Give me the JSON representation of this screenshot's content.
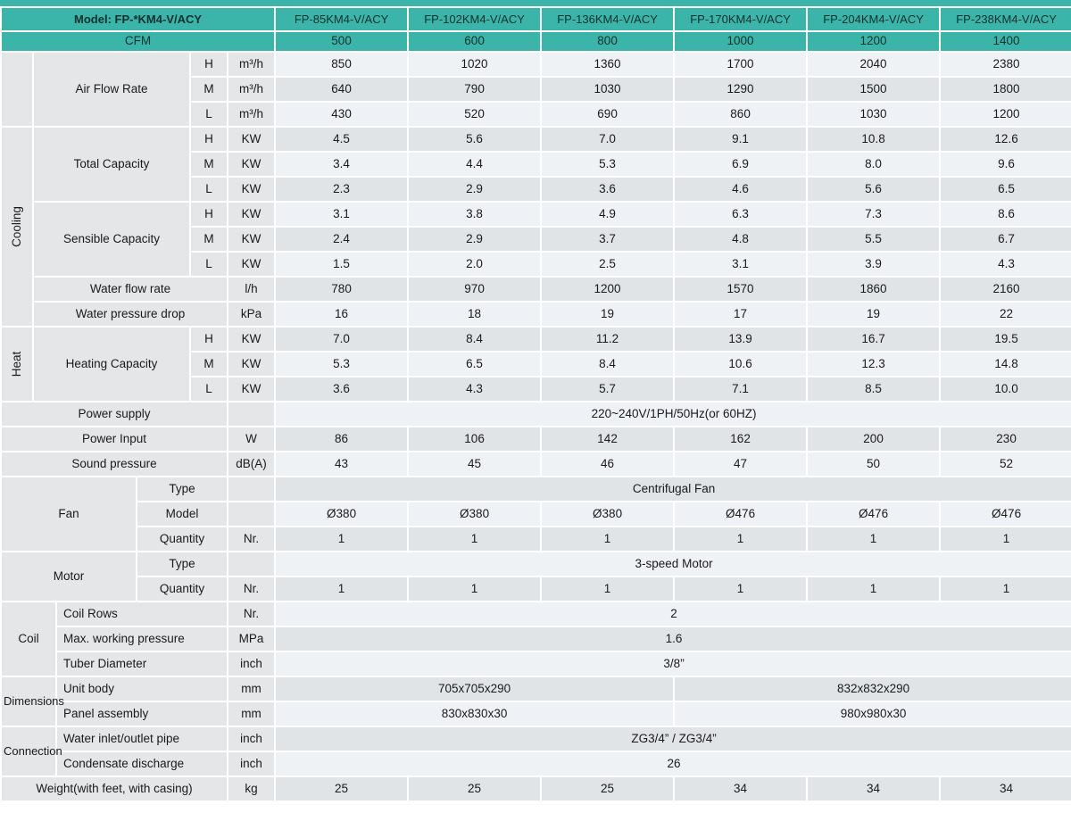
{
  "colors": {
    "teal": "#3bb5aa",
    "header_text": "#12302d",
    "label_bg": "#e4e6e8",
    "row_light": "#eef2f4",
    "row_gray": "#e1e4e6",
    "body_text": "#1a1a1a",
    "gap_white": "#ffffff"
  },
  "header": {
    "model_label": "Model: FP-*KM4-V/ACY",
    "cfm_label": "CFM",
    "models": [
      "FP-85KM4-V/ACY",
      "FP-102KM4-V/ACY",
      "FP-136KM4-V/ACY",
      "FP-170KM4-V/ACY",
      "FP-204KM4-V/ACY",
      "FP-238KM4-V/ACY"
    ],
    "cfm_values": [
      "500",
      "600",
      "800",
      "1000",
      "1200",
      "1400"
    ]
  },
  "rows": [
    [
      {
        "y": "gap",
        "rs": 3
      },
      {
        "y": "lab",
        "t": "Air Flow Rate",
        "cs": 3,
        "rs": 3
      },
      {
        "y": "hml",
        "t": "H"
      },
      {
        "y": "unit",
        "t": "m³/h"
      },
      {
        "y": "vals",
        "vals": [
          "850",
          "1020",
          "1360",
          "1700",
          "2040",
          "2380"
        ]
      }
    ],
    [
      {
        "y": "hml",
        "t": "M"
      },
      {
        "y": "unit",
        "t": "m³/h"
      },
      {
        "y": "vals",
        "vals": [
          "640",
          "790",
          "1030",
          "1290",
          "1500",
          "1800"
        ]
      }
    ],
    [
      {
        "y": "hml",
        "t": "L"
      },
      {
        "y": "unit",
        "t": "m³/h"
      },
      {
        "y": "vals",
        "vals": [
          "430",
          "520",
          "690",
          "860",
          "1030",
          "1200"
        ]
      }
    ],
    [
      {
        "y": "secv",
        "t": "Cooling",
        "rs": 8
      },
      {
        "y": "lab",
        "t": "Total Capacity",
        "cs": 3,
        "rs": 3
      },
      {
        "y": "hml",
        "t": "H"
      },
      {
        "y": "unit",
        "t": "KW"
      },
      {
        "y": "vals",
        "vals": [
          "4.5",
          "5.6",
          "7.0",
          "9.1",
          "10.8",
          "12.6"
        ]
      }
    ],
    [
      {
        "y": "hml",
        "t": "M"
      },
      {
        "y": "unit",
        "t": "KW"
      },
      {
        "y": "vals",
        "vals": [
          "3.4",
          "4.4",
          "5.3",
          "6.9",
          "8.0",
          "9.6"
        ]
      }
    ],
    [
      {
        "y": "hml",
        "t": "L"
      },
      {
        "y": "unit",
        "t": "KW"
      },
      {
        "y": "vals",
        "vals": [
          "2.3",
          "2.9",
          "3.6",
          "4.6",
          "5.6",
          "6.5"
        ]
      }
    ],
    [
      {
        "y": "lab",
        "t": "Sensible Capacity",
        "cs": 3,
        "rs": 3
      },
      {
        "y": "hml",
        "t": "H"
      },
      {
        "y": "unit",
        "t": "KW"
      },
      {
        "y": "vals",
        "vals": [
          "3.1",
          "3.8",
          "4.9",
          "6.3",
          "7.3",
          "8.6"
        ]
      }
    ],
    [
      {
        "y": "hml",
        "t": "M"
      },
      {
        "y": "unit",
        "t": "KW"
      },
      {
        "y": "vals",
        "vals": [
          "2.4",
          "2.9",
          "3.7",
          "4.8",
          "5.5",
          "6.7"
        ]
      }
    ],
    [
      {
        "y": "hml",
        "t": "L"
      },
      {
        "y": "unit",
        "t": "KW"
      },
      {
        "y": "vals",
        "vals": [
          "1.5",
          "2.0",
          "2.5",
          "3.1",
          "3.9",
          "4.3"
        ]
      }
    ],
    [
      {
        "y": "lab",
        "t": "Water flow rate",
        "cs": 4
      },
      {
        "y": "unit",
        "t": "l/h"
      },
      {
        "y": "vals",
        "vals": [
          "780",
          "970",
          "1200",
          "1570",
          "1860",
          "2160"
        ]
      }
    ],
    [
      {
        "y": "lab",
        "t": "Water pressure drop",
        "cs": 4
      },
      {
        "y": "unit",
        "t": "kPa"
      },
      {
        "y": "vals",
        "vals": [
          "16",
          "18",
          "19",
          "17",
          "19",
          "22"
        ]
      }
    ],
    [
      {
        "y": "secv",
        "t": "Heat",
        "rs": 3
      },
      {
        "y": "lab",
        "t": "Heating Capacity",
        "cs": 3,
        "rs": 3
      },
      {
        "y": "hml",
        "t": "H"
      },
      {
        "y": "unit",
        "t": "KW"
      },
      {
        "y": "vals",
        "vals": [
          "7.0",
          "8.4",
          "11.2",
          "13.9",
          "16.7",
          "19.5"
        ]
      }
    ],
    [
      {
        "y": "hml",
        "t": "M"
      },
      {
        "y": "unit",
        "t": "KW"
      },
      {
        "y": "vals",
        "vals": [
          "5.3",
          "6.5",
          "8.4",
          "10.6",
          "12.3",
          "14.8"
        ]
      }
    ],
    [
      {
        "y": "hml",
        "t": "L"
      },
      {
        "y": "unit",
        "t": "KW"
      },
      {
        "y": "vals",
        "vals": [
          "3.6",
          "4.3",
          "5.7",
          "7.1",
          "8.5",
          "10.0"
        ]
      }
    ],
    [
      {
        "y": "lab",
        "t": "Power supply",
        "cs": 5
      },
      {
        "y": "unit",
        "t": ""
      },
      {
        "y": "vspan",
        "t": "220~240V/1PH/50Hz(or 60HZ)",
        "cs": 6
      }
    ],
    [
      {
        "y": "lab",
        "t": "Power Input",
        "cs": 5
      },
      {
        "y": "unit",
        "t": "W"
      },
      {
        "y": "vals",
        "vals": [
          "86",
          "106",
          "142",
          "162",
          "200",
          "230"
        ]
      }
    ],
    [
      {
        "y": "lab",
        "t": "Sound pressure",
        "cs": 5
      },
      {
        "y": "unit",
        "t": "dB(A)"
      },
      {
        "y": "vals",
        "vals": [
          "43",
          "45",
          "46",
          "47",
          "50",
          "52"
        ]
      }
    ],
    [
      {
        "y": "sec",
        "t": "Fan",
        "cs": 3,
        "rs": 3
      },
      {
        "y": "sub",
        "t": "Type",
        "cs": 2
      },
      {
        "y": "unit",
        "t": ""
      },
      {
        "y": "vspan",
        "t": "Centrifugal Fan",
        "cs": 6
      }
    ],
    [
      {
        "y": "sub",
        "t": "Model",
        "cs": 2
      },
      {
        "y": "unit",
        "t": ""
      },
      {
        "y": "vals",
        "vals": [
          "Ø380",
          "Ø380",
          "Ø380",
          "Ø476",
          "Ø476",
          "Ø476"
        ]
      }
    ],
    [
      {
        "y": "sub",
        "t": "Quantity",
        "cs": 2
      },
      {
        "y": "unit",
        "t": "Nr."
      },
      {
        "y": "vals",
        "vals": [
          "1",
          "1",
          "1",
          "1",
          "1",
          "1"
        ]
      }
    ],
    [
      {
        "y": "sec",
        "t": "Motor",
        "cs": 3,
        "rs": 2
      },
      {
        "y": "sub",
        "t": "Type",
        "cs": 2
      },
      {
        "y": "unit",
        "t": ""
      },
      {
        "y": "vspan",
        "t": "3-speed Motor",
        "cs": 6
      }
    ],
    [
      {
        "y": "sub",
        "t": "Quantity",
        "cs": 2
      },
      {
        "y": "unit",
        "t": "Nr."
      },
      {
        "y": "vals",
        "vals": [
          "1",
          "1",
          "1",
          "1",
          "1",
          "1"
        ]
      }
    ],
    [
      {
        "y": "sec",
        "t": "Coil",
        "cs": 2,
        "rs": 3
      },
      {
        "y": "subl",
        "t": "Coil Rows",
        "cs": 3
      },
      {
        "y": "unit",
        "t": "Nr."
      },
      {
        "y": "vspan",
        "t": "2",
        "cs": 6
      }
    ],
    [
      {
        "y": "subl",
        "t": "Max. working pressure",
        "cs": 3
      },
      {
        "y": "unit",
        "t": "MPa"
      },
      {
        "y": "vspan",
        "t": "1.6",
        "cs": 6
      }
    ],
    [
      {
        "y": "subl",
        "t": "Tuber Diameter",
        "cs": 3
      },
      {
        "y": "unit",
        "t": "inch"
      },
      {
        "y": "vspan",
        "t": "3/8”",
        "cs": 6
      }
    ],
    [
      {
        "y": "secl",
        "t": "Dimensions",
        "cs": 2,
        "rs": 2
      },
      {
        "y": "subl",
        "t": "Unit body",
        "cs": 3
      },
      {
        "y": "unit",
        "t": "mm"
      },
      {
        "y": "vspan",
        "t": "705x705x290",
        "cs": 3
      },
      {
        "y": "vspan",
        "t": "832x832x290",
        "cs": 3
      }
    ],
    [
      {
        "y": "subl",
        "t": "Panel assembly",
        "cs": 3
      },
      {
        "y": "unit",
        "t": "mm"
      },
      {
        "y": "vspan",
        "t": "830x830x30",
        "cs": 3
      },
      {
        "y": "vspan",
        "t": "980x980x30",
        "cs": 3
      }
    ],
    [
      {
        "y": "secl",
        "t": "Connection",
        "cs": 2,
        "rs": 2
      },
      {
        "y": "subl",
        "t": "Water inlet/outlet pipe",
        "cs": 3
      },
      {
        "y": "unit",
        "t": "inch"
      },
      {
        "y": "vspan",
        "t": "ZG3/4” / ZG3/4”",
        "cs": 6
      }
    ],
    [
      {
        "y": "subl",
        "t": "Condensate discharge",
        "cs": 3
      },
      {
        "y": "unit",
        "t": "inch"
      },
      {
        "y": "vspan",
        "t": "26",
        "cs": 6
      }
    ],
    [
      {
        "y": "lab",
        "t": "Weight(with feet, with casing)",
        "cs": 5
      },
      {
        "y": "unit",
        "t": "kg"
      },
      {
        "y": "vals",
        "vals": [
          "25",
          "25",
          "25",
          "34",
          "34",
          "34"
        ]
      }
    ]
  ]
}
